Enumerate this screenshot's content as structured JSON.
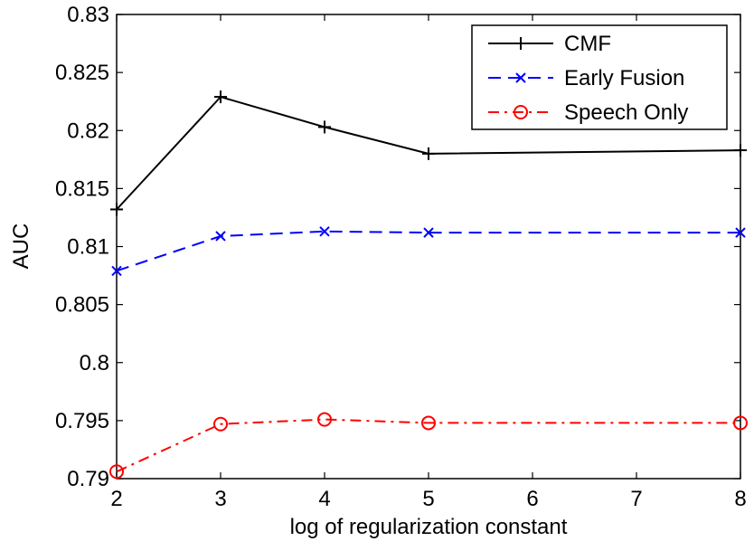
{
  "chart_data": {
    "type": "line",
    "title": "",
    "xlabel": "log of regularization constant",
    "ylabel": "AUC",
    "xlim": [
      2,
      8
    ],
    "ylim": [
      0.79,
      0.83
    ],
    "x_ticks": [
      "2",
      "3",
      "4",
      "5",
      "6",
      "7",
      "8"
    ],
    "y_ticks": [
      "0.79",
      "0.795",
      "0.8",
      "0.805",
      "0.81",
      "0.815",
      "0.82",
      "0.825",
      "0.83"
    ],
    "grid": false,
    "legend_position": "top-right",
    "series": [
      {
        "name": "CMF",
        "color": "#000000",
        "line_style": "solid",
        "marker": "plus",
        "x": [
          2,
          3,
          4,
          5,
          8
        ],
        "y": [
          0.8132,
          0.8229,
          0.8203,
          0.818,
          0.8183
        ]
      },
      {
        "name": "Early Fusion",
        "color": "#0000ff",
        "line_style": "dashed",
        "marker": "x",
        "x": [
          2,
          3,
          4,
          5,
          8
        ],
        "y": [
          0.8079,
          0.8109,
          0.8113,
          0.8112,
          0.8112
        ]
      },
      {
        "name": "Speech Only",
        "color": "#ff0000",
        "line_style": "dash-dot",
        "marker": "circle",
        "x": [
          2,
          3,
          4,
          5,
          8
        ],
        "y": [
          0.7906,
          0.7947,
          0.7951,
          0.7948,
          0.7948
        ]
      }
    ]
  }
}
